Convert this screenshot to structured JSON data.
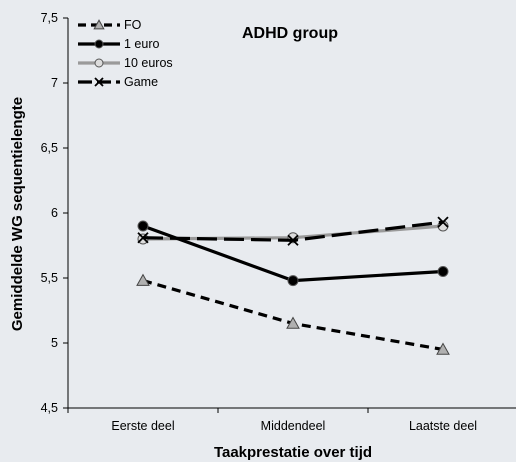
{
  "chart_data": {
    "type": "line",
    "title": "ADHD group",
    "xlabel": "Taakprestatie over tijd",
    "ylabel": "Gemiddelde WG sequentielengte",
    "categories": [
      "Eerste deel",
      "Middendeel",
      "Laatste deel"
    ],
    "ylim": [
      4.5,
      7.5
    ],
    "yticks": [
      "4,5",
      "5",
      "5,5",
      "6",
      "6,5",
      "7",
      "7,5"
    ],
    "grid": false,
    "legend_position": "top-left",
    "series": [
      {
        "name": "FO",
        "values": [
          5.48,
          5.15,
          4.95
        ],
        "color": "#000000",
        "line": "dashed",
        "marker": "triangle",
        "marker_fill": "#b0b0b0"
      },
      {
        "name": "1 euro",
        "values": [
          5.9,
          5.48,
          5.55
        ],
        "color": "#000000",
        "line": "solid",
        "marker": "circle",
        "marker_fill": "#000000"
      },
      {
        "name": "10 euros",
        "values": [
          5.8,
          5.81,
          5.9
        ],
        "color": "#9a9a9a",
        "line": "solid",
        "marker": "circle",
        "marker_fill": "#dcdcdc"
      },
      {
        "name": "Game",
        "values": [
          5.81,
          5.79,
          5.93
        ],
        "color": "#000000",
        "line": "longdash",
        "marker": "x",
        "marker_fill": "none"
      }
    ]
  }
}
